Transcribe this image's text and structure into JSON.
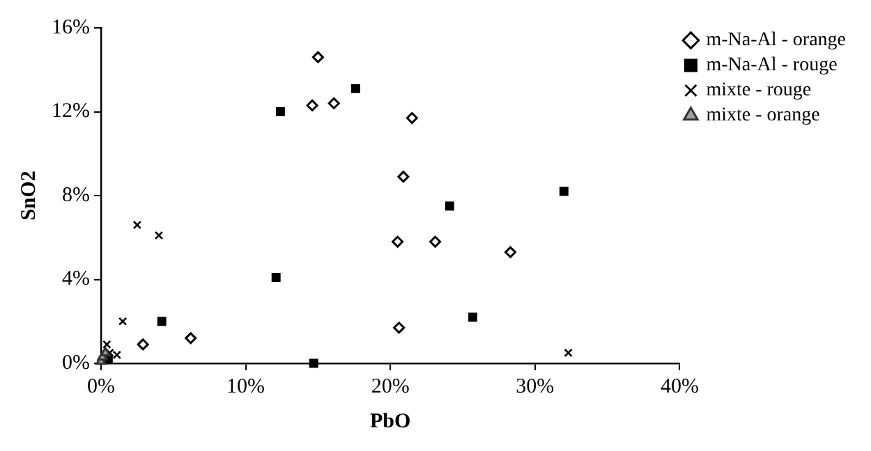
{
  "chart_data": {
    "type": "scatter",
    "xlabel": "PbO",
    "ylabel": "SnO2",
    "xlim": [
      0,
      40
    ],
    "xticks": [
      {
        "value": 0,
        "label": "0%"
      },
      {
        "value": 10,
        "label": "10%"
      },
      {
        "value": 20,
        "label": "20%"
      },
      {
        "value": 30,
        "label": "30%"
      },
      {
        "value": 40,
        "label": "40%"
      }
    ],
    "ylim": [
      0,
      16
    ],
    "yticks": [
      {
        "value": 0,
        "label": "0%"
      },
      {
        "value": 4,
        "label": "4%"
      },
      {
        "value": 8,
        "label": "8%"
      },
      {
        "value": 12,
        "label": "12%"
      },
      {
        "value": 16,
        "label": "16%"
      }
    ],
    "grid": false,
    "legend": "top right",
    "series": [
      {
        "name": "m-Na-Al - orange",
        "color": "#000000",
        "marker": "diamond",
        "x": [
          15.0,
          14.6,
          16.1,
          21.5,
          20.9,
          20.5,
          20.6,
          2.9,
          6.2,
          23.1,
          28.3
        ],
        "values": [
          14.6,
          12.3,
          12.4,
          11.7,
          8.9,
          5.8,
          1.7,
          0.9,
          1.2,
          5.8,
          5.3
        ]
      },
      {
        "name": "m-Na-Al - rouge",
        "color": "#000000",
        "marker": "square",
        "x": [
          12.4,
          17.6,
          12.1,
          4.2,
          14.7,
          24.1,
          25.7,
          32.0,
          0.5
        ],
        "values": [
          12.0,
          13.1,
          4.1,
          2.0,
          0.0,
          7.5,
          2.2,
          8.2,
          0.2
        ]
      },
      {
        "name": "mixte - rouge",
        "color": "#000000",
        "marker": "cross",
        "x": [
          2.5,
          4.0,
          1.5,
          0.4,
          1.1,
          32.3,
          0.6
        ],
        "values": [
          6.6,
          6.1,
          2.0,
          0.9,
          0.4,
          0.5,
          0.5
        ]
      },
      {
        "name": "mixte - orange",
        "color": "#a0a0a0",
        "marker": "triangle",
        "x": [
          0.0,
          0.1,
          0.3
        ],
        "values": [
          0.1,
          0.3,
          0.5
        ]
      }
    ]
  }
}
